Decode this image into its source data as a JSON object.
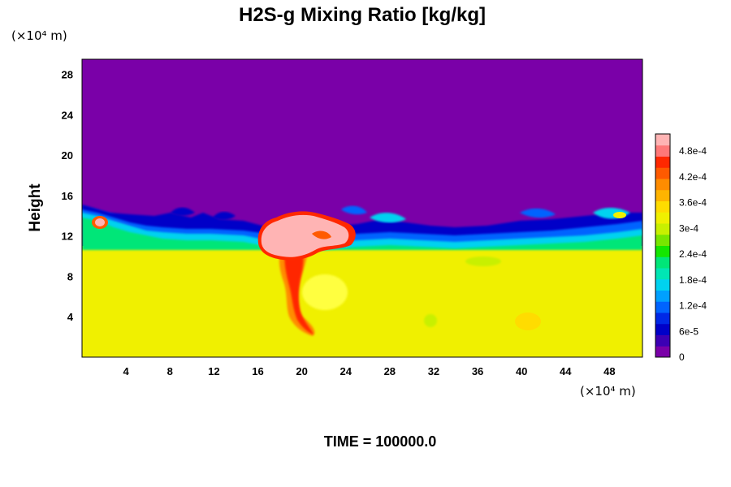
{
  "chart_data": {
    "type": "heatmap",
    "title": "H2S-g Mixing Ratio [kg/kg]",
    "ylabel": "Height",
    "y_unit": "(×10⁴ m)",
    "x_unit": "(×10⁴ m)",
    "xlim": [
      0,
      51
    ],
    "ylim": [
      0,
      29.5
    ],
    "x_ticks": [
      4,
      8,
      12,
      16,
      20,
      24,
      28,
      32,
      36,
      40,
      44,
      48
    ],
    "y_ticks": [
      4,
      8,
      12,
      16,
      20,
      24,
      28
    ],
    "colorbar": {
      "min": 0,
      "max": 0.00052,
      "tick_values": [
        0,
        6e-05,
        0.00012,
        0.00018,
        0.00024,
        0.0003,
        0.00036,
        0.00042,
        0.00048
      ],
      "tick_labels": [
        "0",
        "6e-5",
        "1.2e-4",
        "1.8e-4",
        "2.4e-4",
        "3e-4",
        "3.6e-4",
        "4.2e-4",
        "4.8e-4"
      ],
      "colors": [
        "#7a00a8",
        "#3c00b4",
        "#0000c8",
        "#0028e6",
        "#0064ff",
        "#00a0ff",
        "#00d2f0",
        "#00e6b4",
        "#00e678",
        "#14e600",
        "#78e600",
        "#c8f000",
        "#f0f000",
        "#ffdc00",
        "#ffb400",
        "#ff8c00",
        "#ff5a00",
        "#ff2800",
        "#ff7878",
        "#ffb4b4"
      ]
    },
    "fields": {
      "upper_layer_value": 0,
      "lower_layer_value": 0.00034,
      "interface_height_range": [
        11,
        15
      ],
      "plume": {
        "x_range": [
          17,
          26
        ],
        "y_range": [
          10,
          13.5
        ],
        "value": 0.00052
      },
      "stem": {
        "x_range": [
          18,
          20.5
        ],
        "y_range": [
          2,
          10
        ],
        "value": 0.00045
      }
    },
    "grid": false,
    "legend": "right"
  },
  "footer": {
    "time_label": "TIME = 100000.0"
  }
}
